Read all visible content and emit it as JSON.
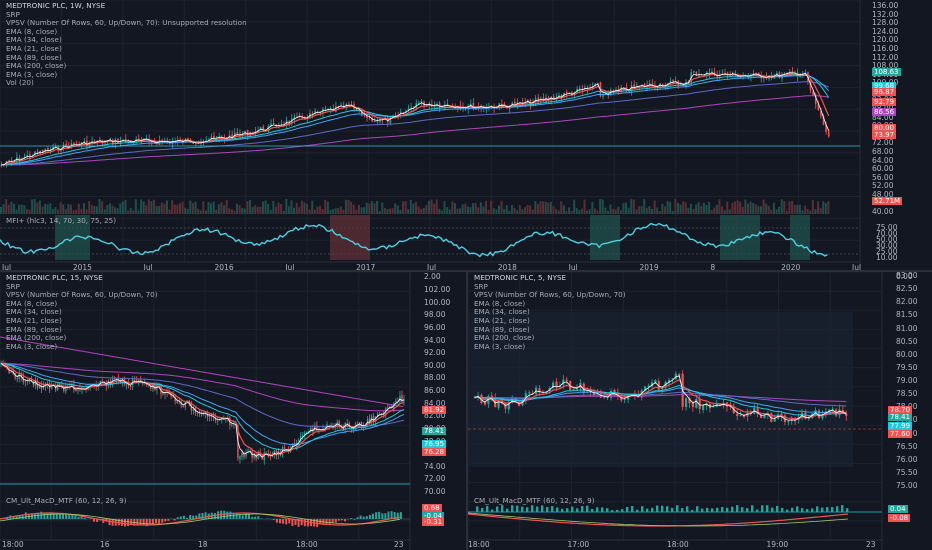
{
  "colors": {
    "bg": "#131722",
    "grid": "#1e2230",
    "up": "#26a69a",
    "down": "#ef5350",
    "ema8": "#ef5350",
    "ema34": "#42a5f5",
    "ema21": "#26c6da",
    "ema89": "#5c6bc0",
    "ema200": "#ab47bc",
    "ema3": "#ffffff",
    "mfi": "#4dd0e1",
    "hline": "#26c6da"
  },
  "top": {
    "legend": [
      "MEDTRONIC PLC, 1W, NYSE",
      "SRP",
      "VPSV (Number Of Rows, 60, Up/Down, 70): Unsupported resolution",
      "EMA (8, close)",
      "EMA (34, close)",
      "EMA (21, close)",
      "EMA (89, close)",
      "EMA (200, close)",
      "EMA (3, close)",
      "Vol (20)"
    ],
    "mfi_legend": "MFI+ (hlc3, 14, 70, 30, 75, 25)",
    "price_axis": [
      "136.00",
      "132.00",
      "128.00",
      "124.00",
      "120.00",
      "116.00",
      "112.00",
      "108.00",
      "104.00",
      "100.00",
      "96.00",
      "92.00",
      "88.00",
      "84.00",
      "80.00",
      "76.00",
      "72.00",
      "68.00",
      "64.00",
      "60.00",
      "56.00",
      "52.00",
      "48.00",
      "44.00",
      "40.00"
    ],
    "price_tags": [
      {
        "text": "108.63",
        "color": "#26a69a"
      },
      {
        "text": "99.68",
        "color": "#26c6da"
      },
      {
        "text": "96.87",
        "color": "#ef5350"
      },
      {
        "text": "92.79",
        "color": "#ef5350"
      },
      {
        "text": "86.56",
        "color": "#ab47bc"
      },
      {
        "text": "80.00",
        "color": "#ef5350"
      },
      {
        "text": "73.97",
        "color": "#ef5350"
      },
      {
        "text": "52.71M",
        "color": "#ef5350"
      }
    ],
    "mfi_axis": [
      "75.00",
      "70.00",
      "50.00",
      "30.00",
      "25.00",
      "10.00"
    ],
    "time_axis": [
      "Jul",
      "2015",
      "Jul",
      "2016",
      "Jul",
      "2017",
      "Jul",
      "2018",
      "Jul",
      "2019",
      "8",
      "2020",
      "Jul"
    ]
  },
  "bl": {
    "legend": [
      "MEDTRONIC PLC, 15, NYSE",
      "SRP",
      "VPSV (Number Of Rows, 60, Up/Down, 70)",
      "EMA (8, close)",
      "EMA (34, close)",
      "EMA (21, close)",
      "EMA (89, close)",
      "EMA (200, close)",
      "EMA (3, close)"
    ],
    "macd_legend": "CM_Ult_MacD_MTF (60, 12, 26, 9)",
    "price_axis": [
      "102.00",
      "100.00",
      "98.00",
      "96.00",
      "94.00",
      "92.00",
      "90.00",
      "88.00",
      "86.00",
      "84.00",
      "82.00",
      "80.00",
      "78.00",
      "76.00",
      "74.00",
      "72.00",
      "70.00"
    ],
    "price_tags": [
      {
        "text": "81.92",
        "color": "#ef5350"
      },
      {
        "text": "78.41",
        "color": "#26a69a"
      },
      {
        "text": "76.95",
        "color": "#26c6da"
      },
      {
        "text": "76.28",
        "color": "#ef5350"
      }
    ],
    "macd_axis": [
      "2.00"
    ],
    "macd_tags": [
      {
        "text": "0.68",
        "color": "#ef5350"
      },
      {
        "text": "-0.04",
        "color": "#26a69a"
      },
      {
        "text": "-0.31",
        "color": "#ef5350"
      }
    ],
    "time_axis": [
      "18:00",
      "16",
      "18",
      "18:00",
      "23"
    ]
  },
  "br": {
    "legend": [
      "MEDTRONIC PLC, 5, NYSE",
      "SRP",
      "VPSV (Number Of Rows, 60, Up/Down, 70)",
      "EMA (8, close)",
      "EMA (34, close)",
      "EMA (21, close)",
      "EMA (89, close)",
      "EMA (200, close)",
      "EMA (3, close)"
    ],
    "macd_legend": "CM_Ult_MacD_MTF (60, 12, 26, 9)",
    "price_axis": [
      "83.00",
      "82.50",
      "82.00",
      "81.50",
      "81.00",
      "80.50",
      "80.00",
      "79.50",
      "79.00",
      "78.50",
      "78.00",
      "77.50",
      "77.00",
      "76.50",
      "76.00",
      "75.50",
      "75.00"
    ],
    "price_tags": [
      {
        "text": "78.70",
        "color": "#ef5350"
      },
      {
        "text": "78.41",
        "color": "#26a69a"
      },
      {
        "text": "77.99",
        "color": "#26c6da"
      },
      {
        "text": "77.60",
        "color": "#ef5350"
      }
    ],
    "macd_axis": [
      "0.00"
    ],
    "macd_tags": [
      {
        "text": "0.04",
        "color": "#26a69a"
      },
      {
        "text": "-0.08",
        "color": "#ef5350"
      }
    ],
    "time_axis": [
      "18:00",
      "17:00",
      "18:00",
      "19:00",
      "23"
    ]
  }
}
